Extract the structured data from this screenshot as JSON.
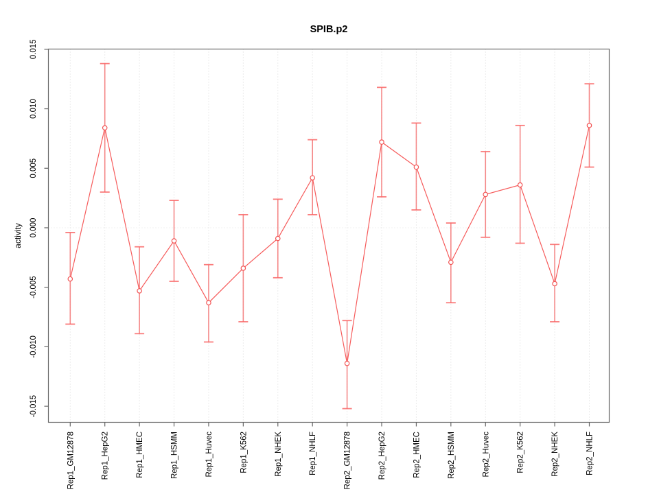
{
  "chart_data": {
    "type": "line",
    "title": "SPIB.p2",
    "xlabel": "",
    "ylabel": "activity",
    "legend": "none",
    "grid": "vertical dotted gridlines per category, dotted horizontal line at y=0",
    "categories": [
      "Rep1_GM12878",
      "Rep1_HepG2",
      "Rep1_HMEC",
      "Rep1_HSMM",
      "Rep1_Huvec",
      "Rep1_K562",
      "Rep1_NHEK",
      "Rep1_NHLF",
      "Rep2_GM12878",
      "Rep2_HepG2",
      "Rep2_HMEC",
      "Rep2_HSMM",
      "Rep2_Huvec",
      "Rep2_K562",
      "Rep2_NHEK",
      "Rep2_NHLF"
    ],
    "series": [
      {
        "name": "activity",
        "marker": "open-circle",
        "values": [
          -0.0043,
          0.0084,
          -0.0053,
          -0.0011,
          -0.0063,
          -0.0034,
          -0.0009,
          0.0042,
          -0.0114,
          0.0072,
          0.0051,
          -0.0029,
          0.0028,
          0.0036,
          -0.0047,
          0.0086
        ],
        "error_high": [
          -0.0004,
          0.0138,
          -0.0016,
          0.0023,
          -0.0031,
          0.0011,
          0.0024,
          0.0074,
          -0.0078,
          0.0118,
          0.0088,
          0.0004,
          0.0064,
          0.0086,
          -0.0014,
          0.0121
        ],
        "error_low": [
          -0.0081,
          0.003,
          -0.0089,
          -0.0045,
          -0.0096,
          -0.0079,
          -0.0042,
          0.0011,
          -0.0152,
          0.0026,
          0.0015,
          -0.0063,
          -0.0008,
          -0.0013,
          -0.0079,
          0.0051
        ]
      }
    ],
    "ylim": [
      -0.01635,
      0.01502
    ],
    "yticks": [
      -0.015,
      -0.01,
      -0.005,
      0,
      0.005,
      0.01,
      0.015
    ],
    "ytick_labels": [
      "-0.015",
      "-0.010",
      "-0.005",
      "0.000",
      "0.005",
      "0.010",
      "0.015"
    ],
    "colors": {
      "series_line": "#f65b5b",
      "marker_stroke": "#f25454",
      "error_bar": "#f47c7c",
      "error_cap": "#fa6666",
      "gridline": "#d9d9d9",
      "zero_line": "#e3e3e3",
      "axis": "#666666",
      "text": "#000000",
      "background": "#ffffff"
    }
  }
}
